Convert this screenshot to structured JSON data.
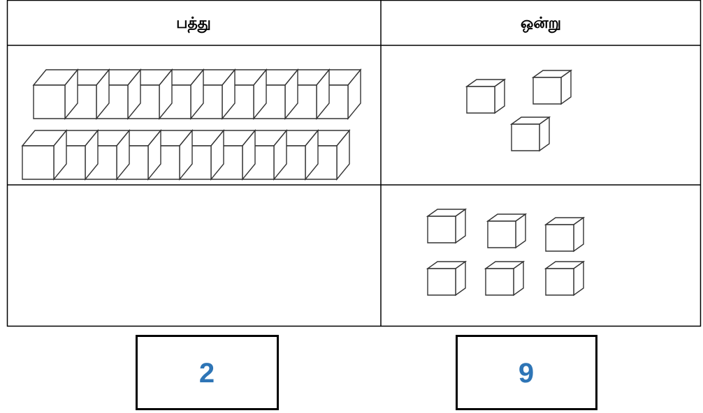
{
  "table": {
    "headers": [
      "பத்து",
      "ஒன்று"
    ]
  },
  "answers": [
    2,
    9
  ]
}
